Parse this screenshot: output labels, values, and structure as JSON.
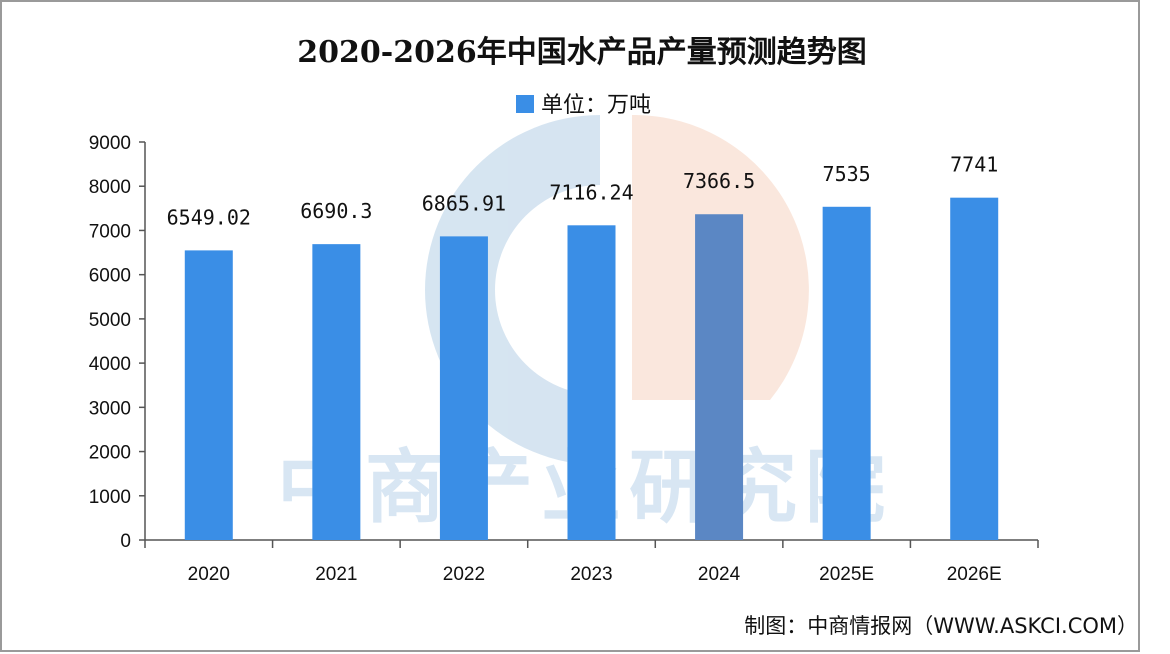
{
  "chart_data": {
    "type": "bar",
    "title": "2020-2026年中国水产品产量预测趋势图",
    "legend": {
      "label": "单位：万吨",
      "placement": "top-center"
    },
    "categories": [
      "2020",
      "2021",
      "2022",
      "2023",
      "2024",
      "2025E",
      "2026E"
    ],
    "series": [
      {
        "name": "单位：万吨",
        "values": [
          6549.02,
          6690.3,
          6865.91,
          7116.24,
          7366.5,
          7535,
          7741
        ]
      }
    ],
    "data_labels": [
      "6549.02",
      "6690.3",
      "6865.91",
      "7116.24",
      "7366.5",
      "7535",
      "7741"
    ],
    "ylim": [
      0,
      9000
    ],
    "yticks": [
      0,
      1000,
      2000,
      3000,
      4000,
      5000,
      6000,
      7000,
      8000,
      9000
    ],
    "xlabel": "",
    "ylabel": "",
    "grid": false
  },
  "source": "制图：中商情报网（WWW.ASKCI.COM）",
  "watermark": "中商产业研究院",
  "colors": {
    "bar": "#3a8ee6",
    "bar_overlap": "#5b87c4",
    "axis": "#555555"
  }
}
